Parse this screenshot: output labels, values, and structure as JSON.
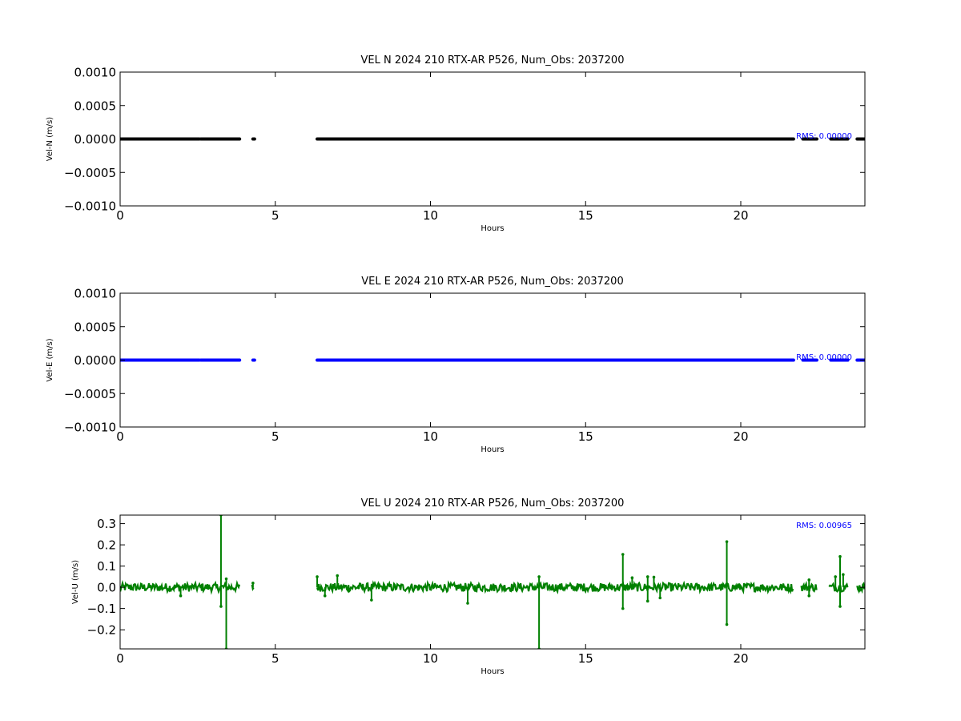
{
  "chart_data": [
    {
      "type": "scatter",
      "title": "VEL N 2024 210 RTX-AR  P526, Num_Obs: 2037200",
      "xlabel": "Hours",
      "ylabel": "Vel-N (m/s)",
      "xlim": [
        0,
        24
      ],
      "ylim": [
        -0.001,
        0.001
      ],
      "xticks": [
        0,
        5,
        10,
        15,
        20
      ],
      "xtick_labels": [
        "0",
        "5",
        "10",
        "15",
        "20"
      ],
      "yticks": [
        0.001,
        0.0005,
        0.0,
        -0.0005,
        -0.001
      ],
      "ytick_labels": [
        "0.0010",
        "0.0005",
        "0.0000",
        "−0.0005",
        "−0.0010"
      ],
      "annotation": "RMS:  0.00000",
      "annotation_color": "#0000ff",
      "color": "#000000",
      "grid": false,
      "series": [
        {
          "segments": [
            {
              "x": [
                0.0,
                1.9
              ],
              "y": [
                0.0,
                0.0
              ]
            },
            {
              "x": [
                1.9,
                2.55
              ],
              "y": [
                0.0,
                0.0
              ]
            },
            {
              "x": [
                2.6,
                3.85
              ],
              "y": [
                0.0,
                0.0
              ]
            },
            {
              "x": [
                4.28,
                4.3
              ],
              "y": [
                0.0,
                0.0
              ]
            },
            {
              "x": [
                6.35,
                21.7
              ],
              "y": [
                0.0,
                0.0
              ]
            },
            {
              "x": [
                22.0,
                22.45
              ],
              "y": [
                0.0,
                0.0
              ]
            },
            {
              "x": [
                22.9,
                23.45
              ],
              "y": [
                0.0,
                0.0
              ]
            },
            {
              "x": [
                23.75,
                24.0
              ],
              "y": [
                0.0,
                0.0
              ]
            }
          ]
        }
      ]
    },
    {
      "type": "scatter",
      "title": "VEL E 2024 210 RTX-AR  P526, Num_Obs: 2037200",
      "xlabel": "Hours",
      "ylabel": "Vel-E (m/s)",
      "xlim": [
        0,
        24
      ],
      "ylim": [
        -0.001,
        0.001
      ],
      "xticks": [
        0,
        5,
        10,
        15,
        20
      ],
      "xtick_labels": [
        "0",
        "5",
        "10",
        "15",
        "20"
      ],
      "yticks": [
        0.001,
        0.0005,
        0.0,
        -0.0005,
        -0.001
      ],
      "ytick_labels": [
        "0.0010",
        "0.0005",
        "0.0000",
        "−0.0005",
        "−0.0010"
      ],
      "annotation": "RMS:  0.00000",
      "annotation_color": "#0000ff",
      "color": "#0000ff",
      "grid": false,
      "series": [
        {
          "segments": [
            {
              "x": [
                0.0,
                1.9
              ],
              "y": [
                0.0,
                0.0
              ]
            },
            {
              "x": [
                1.9,
                2.55
              ],
              "y": [
                0.0,
                0.0
              ]
            },
            {
              "x": [
                2.6,
                3.85
              ],
              "y": [
                0.0,
                0.0
              ]
            },
            {
              "x": [
                4.28,
                4.3
              ],
              "y": [
                0.0,
                0.0
              ]
            },
            {
              "x": [
                6.35,
                21.7
              ],
              "y": [
                0.0,
                0.0
              ]
            },
            {
              "x": [
                22.0,
                22.45
              ],
              "y": [
                0.0,
                0.0
              ]
            },
            {
              "x": [
                22.9,
                23.45
              ],
              "y": [
                0.0,
                0.0
              ]
            },
            {
              "x": [
                23.75,
                24.0
              ],
              "y": [
                0.0,
                0.0
              ]
            }
          ]
        }
      ]
    },
    {
      "type": "line",
      "title": "VEL U 2024 210 RTX-AR  P526, Num_Obs: 2037200",
      "xlabel": "Hours",
      "ylabel": "Vel-U (m/s)",
      "xlim": [
        0,
        24
      ],
      "ylim": [
        -0.29,
        0.34
      ],
      "xticks": [
        0,
        5,
        10,
        15,
        20
      ],
      "xtick_labels": [
        "0",
        "5",
        "10",
        "15",
        "20"
      ],
      "yticks": [
        0.3,
        0.2,
        0.1,
        0.0,
        -0.1,
        -0.2
      ],
      "ytick_labels": [
        "0.3",
        "0.2",
        "0.1",
        "0.0",
        "−0.1",
        "−0.2"
      ],
      "annotation": "RMS:  0.00965",
      "annotation_color": "#0000ff",
      "color": "#008000",
      "grid": false,
      "series": [
        {
          "noise_band": [
            -0.02,
            0.02
          ],
          "segments": [
            {
              "x": [
                0.0,
                3.85
              ]
            },
            {
              "x": [
                4.25,
                4.32
              ]
            },
            {
              "x": [
                6.35,
                21.7
              ]
            },
            {
              "x": [
                21.95,
                22.45
              ]
            },
            {
              "x": [
                22.85,
                23.45
              ]
            },
            {
              "x": [
                23.75,
                24.0
              ]
            }
          ],
          "spikes": [
            {
              "x": 1.95,
              "y": -0.04
            },
            {
              "x": 3.25,
              "y": 0.34
            },
            {
              "x": 3.25,
              "y": -0.09
            },
            {
              "x": 3.42,
              "y": -0.29
            },
            {
              "x": 3.42,
              "y": 0.04
            },
            {
              "x": 4.28,
              "y": 0.02
            },
            {
              "x": 6.35,
              "y": 0.05
            },
            {
              "x": 6.6,
              "y": -0.04
            },
            {
              "x": 7.0,
              "y": 0.055
            },
            {
              "x": 8.1,
              "y": -0.06
            },
            {
              "x": 11.2,
              "y": -0.075
            },
            {
              "x": 13.5,
              "y": -0.29
            },
            {
              "x": 13.5,
              "y": 0.05
            },
            {
              "x": 16.2,
              "y": 0.155
            },
            {
              "x": 16.2,
              "y": -0.1
            },
            {
              "x": 16.5,
              "y": 0.045
            },
            {
              "x": 17.0,
              "y": 0.05
            },
            {
              "x": 17.0,
              "y": -0.065
            },
            {
              "x": 17.2,
              "y": 0.048
            },
            {
              "x": 17.4,
              "y": -0.05
            },
            {
              "x": 19.55,
              "y": 0.215
            },
            {
              "x": 19.55,
              "y": -0.175
            },
            {
              "x": 22.2,
              "y": 0.035
            },
            {
              "x": 22.2,
              "y": -0.04
            },
            {
              "x": 23.05,
              "y": 0.05
            },
            {
              "x": 23.2,
              "y": 0.145
            },
            {
              "x": 23.2,
              "y": -0.09
            },
            {
              "x": 23.3,
              "y": 0.06
            }
          ]
        }
      ]
    }
  ]
}
